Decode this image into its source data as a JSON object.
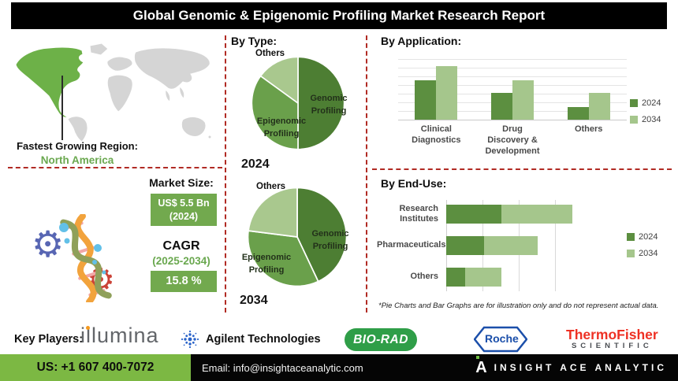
{
  "title": "Global Genomic & Epigenomic Profiling Market Research Report",
  "region": {
    "label": "Fastest Growing Region:",
    "value": "North America"
  },
  "market": {
    "heading": "Market Size:",
    "size_value": "US$ 5.5 Bn",
    "size_year": "(2024)",
    "cagr_label": "CAGR",
    "cagr_period": "(2025-2034)",
    "cagr_value": "15.8 %"
  },
  "footnote": "*Pie Charts and Bar Graphs are for illustration only and do not represent actual data.",
  "key_players": {
    "label": "Key Players:",
    "illumina": "illumina",
    "agilent": "Agilent Technologies",
    "biorad": "BIO-RAD",
    "roche": "Roche",
    "thermo_line1": "ThermoFisher",
    "thermo_line2": "SCIENTIFIC"
  },
  "footer": {
    "phone": "US: +1 607 400-7072",
    "email": "Email: info@insightaceanalytic.com",
    "brand_mark": "A",
    "brand": "INSIGHT ACE ANALYTIC"
  },
  "colors": {
    "pie_dark": "#4d7e33",
    "pie_mid": "#6aa04b",
    "pie_light": "#a9c88e",
    "bar_2024": "#5c8f40",
    "bar_2034": "#a5c68c",
    "accent_green_box": "#72a94e",
    "footer_green": "#7cb843",
    "divider_red": "#b12b24",
    "map_highlight": "#6db148",
    "map_land": "#d5d5d5"
  },
  "chart_data": [
    {
      "id": "pie_2024",
      "type": "pie",
      "title": "By Type:",
      "year_label": "2024",
      "labels": [
        "Genomic Profiling",
        "Epigenomic Profiling",
        "Others"
      ],
      "values": [
        50,
        35,
        15
      ],
      "unit": "percent share (illustrative only)",
      "colors": [
        "#4d7e33",
        "#6aa04b",
        "#a9c88e"
      ],
      "start_angle_deg": 0
    },
    {
      "id": "pie_2034",
      "type": "pie",
      "title": "By Type:",
      "year_label": "2034",
      "labels": [
        "Genomic Profiling",
        "Epigenomic Profiling",
        "Others"
      ],
      "values": [
        43,
        34,
        23
      ],
      "unit": "percent share (illustrative only)",
      "colors": [
        "#4d7e33",
        "#6aa04b",
        "#a9c88e"
      ],
      "start_angle_deg": 0
    },
    {
      "id": "applications",
      "type": "bar",
      "title": "By Application:",
      "categories": [
        "Clinical Diagnostics",
        "Drug Discovery & Development",
        "Others"
      ],
      "series": [
        {
          "name": "2024",
          "color": "#5c8f40",
          "values": [
            64,
            43,
            20
          ]
        },
        {
          "name": "2034",
          "color": "#a5c68c",
          "values": [
            87,
            64,
            43
          ]
        }
      ],
      "ylim": [
        0,
        100
      ],
      "ylabel": "",
      "xlabel": "",
      "grid": true,
      "legend_position": "right",
      "note": "no numeric axis shown; values are relative bar heights (illustrative only)"
    },
    {
      "id": "end_use",
      "type": "bar",
      "orientation": "horizontal",
      "stacked": true,
      "title": "By End-Use:",
      "categories": [
        "Research Institutes",
        "Pharmaceuticals",
        "Others"
      ],
      "series": [
        {
          "name": "2024",
          "color": "#5c8f40",
          "values": [
            38,
            26,
            13
          ]
        },
        {
          "name": "2034",
          "color": "#a5c68c",
          "values": [
            49,
            37,
            25
          ]
        }
      ],
      "xlim": [
        0,
        100
      ],
      "grid": true,
      "legend_position": "right",
      "note": "no numeric axis shown; values are relative segment widths (illustrative only)"
    }
  ]
}
